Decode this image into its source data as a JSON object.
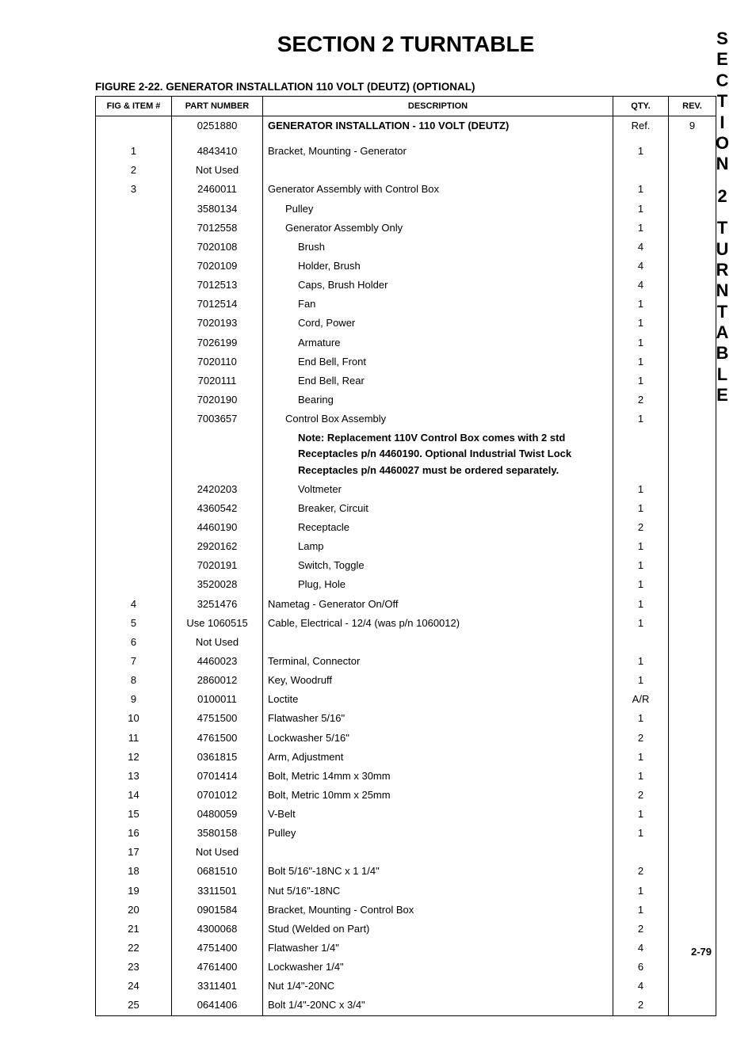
{
  "section_title": "SECTION 2   TURNTABLE",
  "figure_caption": "FIGURE 2-22.  GENERATOR INSTALLATION 110 VOLT (DEUTZ) (OPTIONAL)",
  "columns": {
    "fig": "FIG & ITEM #",
    "pn": "PART NUMBER",
    "desc": "DESCRIPTION",
    "qty": "QTY.",
    "rev": "REV."
  },
  "header_row": {
    "pn": "0251880",
    "desc": "GENERATOR INSTALLATION - 110 VOLT (DEUTZ)",
    "qty": "Ref.",
    "rev": "9"
  },
  "rows": [
    {
      "fig": "1",
      "pn": "4843410",
      "desc": "Bracket, Mounting - Generator",
      "qty": "1",
      "ind": 0
    },
    {
      "fig": "2",
      "pn": "Not Used",
      "desc": "",
      "qty": "",
      "ind": 0
    },
    {
      "fig": "3",
      "pn": "2460011",
      "desc": "Generator Assembly with Control Box",
      "qty": "1",
      "ind": 0
    },
    {
      "fig": "",
      "pn": "3580134",
      "desc": "Pulley",
      "qty": "1",
      "ind": 1
    },
    {
      "fig": "",
      "pn": "7012558",
      "desc": "Generator Assembly Only",
      "qty": "1",
      "ind": 1
    },
    {
      "fig": "",
      "pn": "7020108",
      "desc": "Brush",
      "qty": "4",
      "ind": 2
    },
    {
      "fig": "",
      "pn": "7020109",
      "desc": "Holder, Brush",
      "qty": "4",
      "ind": 2
    },
    {
      "fig": "",
      "pn": "7012513",
      "desc": "Caps, Brush Holder",
      "qty": "4",
      "ind": 2
    },
    {
      "fig": "",
      "pn": "7012514",
      "desc": "Fan",
      "qty": "1",
      "ind": 2
    },
    {
      "fig": "",
      "pn": "7020193",
      "desc": "Cord, Power",
      "qty": "1",
      "ind": 2
    },
    {
      "fig": "",
      "pn": "7026199",
      "desc": "Armature",
      "qty": "1",
      "ind": 2
    },
    {
      "fig": "",
      "pn": "7020110",
      "desc": "End Bell, Front",
      "qty": "1",
      "ind": 2
    },
    {
      "fig": "",
      "pn": "7020111",
      "desc": "End Bell, Rear",
      "qty": "1",
      "ind": 2
    },
    {
      "fig": "",
      "pn": "7020190",
      "desc": "Bearing",
      "qty": "2",
      "ind": 2
    },
    {
      "fig": "",
      "pn": "7003657",
      "desc": "Control Box Assembly",
      "qty": "1",
      "ind": 1
    },
    {
      "note": "Note: Replacement 110V Control Box comes with 2 std Receptacles p/n 4460190. Optional Industrial Twist Lock Receptacles p/n 4460027 must be ordered separately."
    },
    {
      "fig": "",
      "pn": "2420203",
      "desc": "Voltmeter",
      "qty": "1",
      "ind": 2
    },
    {
      "fig": "",
      "pn": "4360542",
      "desc": "Breaker, Circuit",
      "qty": "1",
      "ind": 2
    },
    {
      "fig": "",
      "pn": "4460190",
      "desc": "Receptacle",
      "qty": "2",
      "ind": 2
    },
    {
      "fig": "",
      "pn": "2920162",
      "desc": "Lamp",
      "qty": "1",
      "ind": 2
    },
    {
      "fig": "",
      "pn": "7020191",
      "desc": "Switch, Toggle",
      "qty": "1",
      "ind": 2
    },
    {
      "fig": "",
      "pn": "3520028",
      "desc": "Plug, Hole",
      "qty": "1",
      "ind": 2
    },
    {
      "fig": "4",
      "pn": "3251476",
      "desc": "Nametag - Generator On/Off",
      "qty": "1",
      "ind": 0
    },
    {
      "fig": "5",
      "pn": "Use 1060515",
      "desc": "Cable, Electrical - 12/4 (was p/n 1060012)",
      "qty": "1",
      "ind": 0
    },
    {
      "fig": "6",
      "pn": "Not Used",
      "desc": "",
      "qty": "",
      "ind": 0
    },
    {
      "fig": "7",
      "pn": "4460023",
      "desc": "Terminal, Connector",
      "qty": "1",
      "ind": 0
    },
    {
      "fig": "8",
      "pn": "2860012",
      "desc": "Key, Woodruff",
      "qty": "1",
      "ind": 0
    },
    {
      "fig": "9",
      "pn": "0100011",
      "desc": "Loctite",
      "qty": "A/R",
      "ind": 0
    },
    {
      "fig": "10",
      "pn": "4751500",
      "desc": "Flatwasher 5/16\"",
      "qty": "1",
      "ind": 0
    },
    {
      "fig": "11",
      "pn": "4761500",
      "desc": "Lockwasher 5/16\"",
      "qty": "2",
      "ind": 0
    },
    {
      "fig": "12",
      "pn": "0361815",
      "desc": "Arm, Adjustment",
      "qty": "1",
      "ind": 0
    },
    {
      "fig": "13",
      "pn": "0701414",
      "desc": "Bolt, Metric 14mm x 30mm",
      "qty": "1",
      "ind": 0
    },
    {
      "fig": "14",
      "pn": "0701012",
      "desc": "Bolt, Metric 10mm x 25mm",
      "qty": "2",
      "ind": 0
    },
    {
      "fig": "15",
      "pn": "0480059",
      "desc": "V-Belt",
      "qty": "1",
      "ind": 0
    },
    {
      "fig": "16",
      "pn": "3580158",
      "desc": "Pulley",
      "qty": "1",
      "ind": 0
    },
    {
      "fig": "17",
      "pn": "Not Used",
      "desc": "",
      "qty": "",
      "ind": 0
    },
    {
      "fig": "18",
      "pn": "0681510",
      "desc": "Bolt 5/16\"-18NC x 1 1/4\"",
      "qty": "2",
      "ind": 0
    },
    {
      "fig": "19",
      "pn": "3311501",
      "desc": "Nut 5/16\"-18NC",
      "qty": "1",
      "ind": 0
    },
    {
      "fig": "20",
      "pn": "0901584",
      "desc": "Bracket, Mounting - Control Box",
      "qty": "1",
      "ind": 0
    },
    {
      "fig": "21",
      "pn": "4300068",
      "desc": "Stud (Welded on Part)",
      "qty": "2",
      "ind": 0
    },
    {
      "fig": "22",
      "pn": "4751400",
      "desc": "Flatwasher 1/4\"",
      "qty": "4",
      "ind": 0
    },
    {
      "fig": "23",
      "pn": "4761400",
      "desc": "Lockwasher 1/4\"",
      "qty": "6",
      "ind": 0
    },
    {
      "fig": "24",
      "pn": "3311401",
      "desc": "Nut 1/4\"-20NC",
      "qty": "4",
      "ind": 0
    },
    {
      "fig": "25",
      "pn": "0641406",
      "desc": "Bolt 1/4\"-20NC x 3/4\"",
      "qty": "2",
      "ind": 0
    }
  ],
  "side_tab": "SECTION 2 TURNTABLE",
  "page_number": "2-79"
}
